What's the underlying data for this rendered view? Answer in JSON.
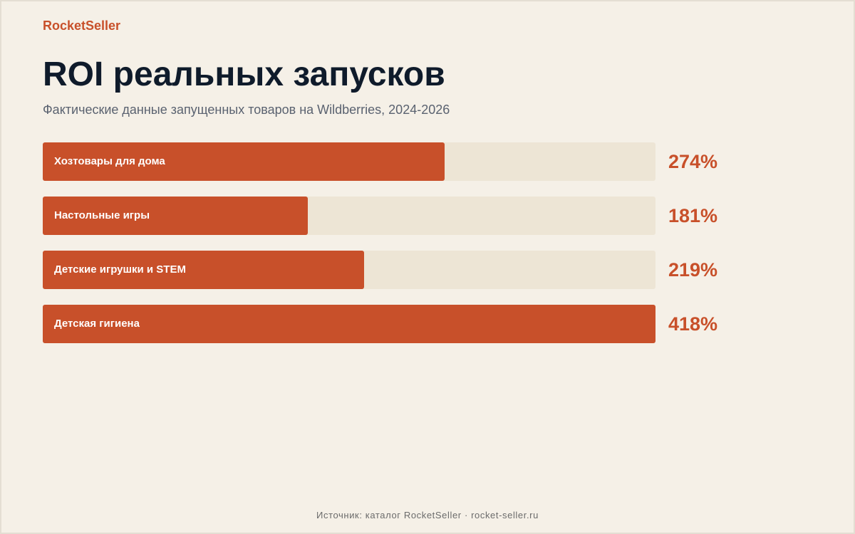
{
  "brand": "RocketSeller",
  "colors": {
    "background": "#f5f0e7",
    "accent": "#c8502a",
    "track": "#ede5d5",
    "title": "#0f1b2b",
    "subtitle": "#5a6270"
  },
  "chart_data": {
    "type": "bar",
    "orientation": "horizontal",
    "title": "ROI реальных запусков",
    "subtitle": "Фактические данные запущенных товаров на Wildberries, 2024-2026",
    "categories": [
      "Хозтовары для дома",
      "Настольные игры",
      "Детские игрушки и STEM",
      "Детская гигиена"
    ],
    "values": [
      274,
      181,
      219,
      418
    ],
    "value_labels": [
      "274%",
      "181%",
      "219%",
      "418%"
    ],
    "unit": "%",
    "xlim": [
      0,
      418
    ],
    "grid": false,
    "legend": "none"
  },
  "footer": "Источник: каталог RocketSeller · rocket-seller.ru"
}
